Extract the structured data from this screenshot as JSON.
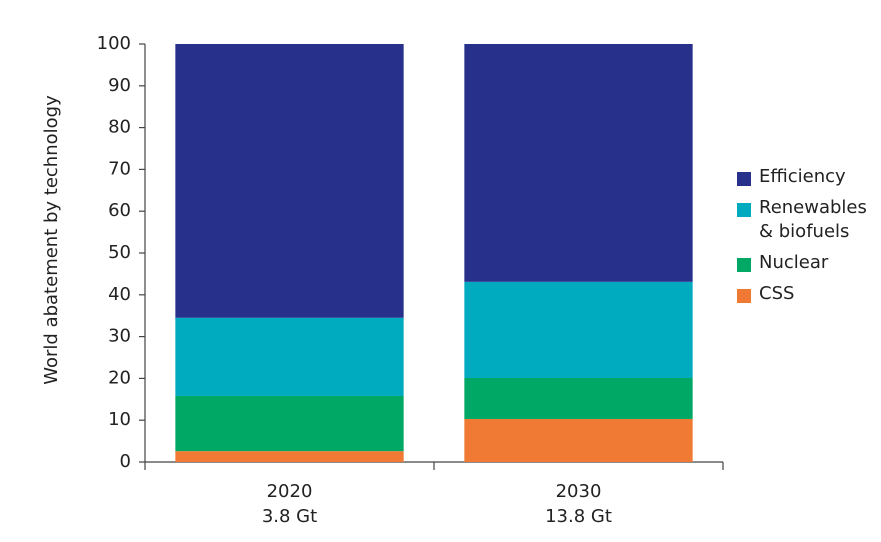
{
  "chart_data": {
    "type": "stacked_bar",
    "y_label": "World abatement by technology",
    "categories": [
      "2020",
      "2030"
    ],
    "category_sublabels": [
      "3.8 Gt",
      "13.8 Gt"
    ],
    "series": [
      {
        "name": "CSS",
        "color": "#f07a33",
        "values": [
          2.6,
          10.3
        ]
      },
      {
        "name": "Nuclear",
        "color": "#00a865",
        "values": [
          13.2,
          9.8
        ]
      },
      {
        "name": "Renewables & biofuels",
        "color": "#00aabf",
        "values": [
          18.7,
          23.0
        ]
      },
      {
        "name": "Efficiency",
        "color": "#27318b",
        "values": [
          65.5,
          56.9
        ]
      }
    ],
    "ylim": [
      0,
      100
    ],
    "yticks": [
      0,
      10,
      20,
      30,
      40,
      50,
      60,
      70,
      80,
      90,
      100
    ]
  }
}
